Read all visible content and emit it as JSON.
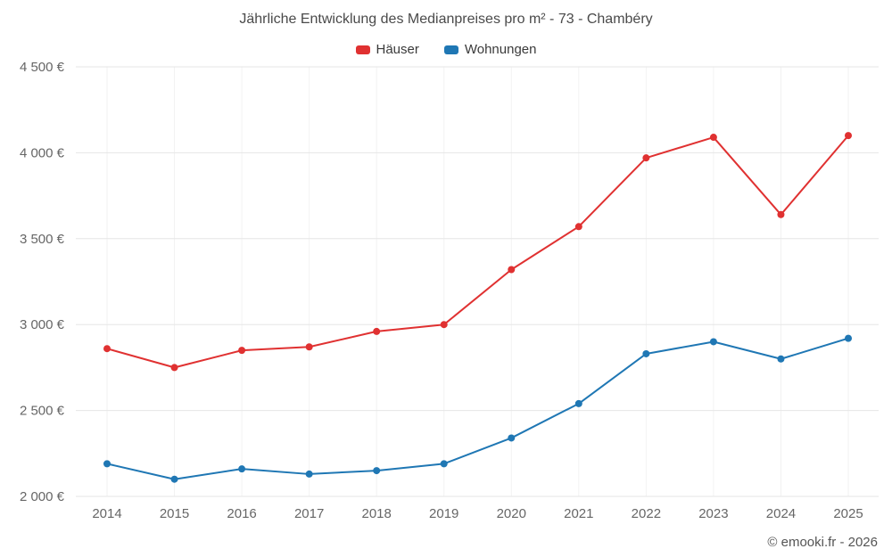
{
  "title": "Jährliche Entwicklung des Medianpreises pro m² - 73 - Chambéry",
  "footer": "© emooki.fr - 2026",
  "chart_data": {
    "type": "line",
    "title": "Jährliche Entwicklung des Medianpreises pro m² - 73 - Chambéry",
    "categories": [
      "2014",
      "2015",
      "2016",
      "2017",
      "2018",
      "2019",
      "2020",
      "2021",
      "2022",
      "2023",
      "2024",
      "2025"
    ],
    "series": [
      {
        "name": "Häuser",
        "color": "#e03131",
        "values": [
          2860,
          2750,
          2850,
          2870,
          2960,
          3000,
          3320,
          3570,
          3970,
          4090,
          3640,
          4100
        ]
      },
      {
        "name": "Wohnungen",
        "color": "#1f77b4",
        "values": [
          2190,
          2100,
          2160,
          2130,
          2150,
          2190,
          2340,
          2540,
          2830,
          2900,
          2800,
          2920
        ]
      }
    ],
    "xlabel": "",
    "ylabel": "",
    "ylim": [
      2000,
      4500
    ],
    "ytick_step": 500,
    "ytick_suffix": " €",
    "grid": true,
    "legend_position": "top"
  }
}
